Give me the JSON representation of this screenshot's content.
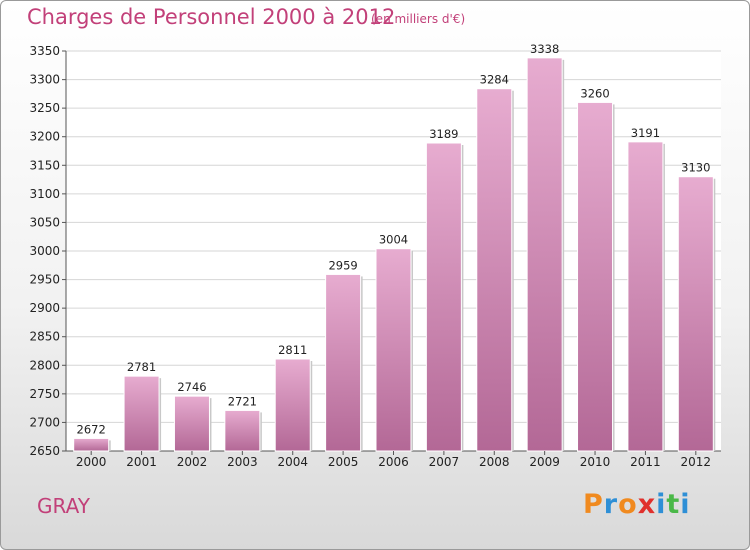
{
  "title": "Charges de Personnel 2000 à 2012",
  "subtitle": "(en milliers d'€)",
  "place": "GRAY",
  "logo": {
    "text": "Proxiti",
    "letter_colors": [
      "#f08a1f",
      "#2e8fd6",
      "#f08a1f",
      "#e0302c",
      "#2e8fd6",
      "#4ab848",
      "#2e8fd6"
    ]
  },
  "colors": {
    "bar": "#d88fb7",
    "bar_light": "#e7acd0",
    "bar_dark": "#b36896",
    "text_accent": "#c24079"
  },
  "chart_data": {
    "type": "bar",
    "title": "Charges de Personnel 2000 à 2012",
    "subtitle": "(en milliers d'€)",
    "categories": [
      "2000",
      "2001",
      "2002",
      "2003",
      "2004",
      "2005",
      "2006",
      "2007",
      "2008",
      "2009",
      "2010",
      "2011",
      "2012"
    ],
    "values": [
      2672,
      2781,
      2746,
      2721,
      2811,
      2959,
      3004,
      3189,
      3284,
      3338,
      3260,
      3191,
      3130
    ],
    "ylim": [
      2650,
      3350
    ],
    "yticks": [
      2650,
      2700,
      2750,
      2800,
      2850,
      2900,
      2950,
      3000,
      3050,
      3100,
      3150,
      3200,
      3250,
      3300,
      3350
    ],
    "grid": true
  }
}
